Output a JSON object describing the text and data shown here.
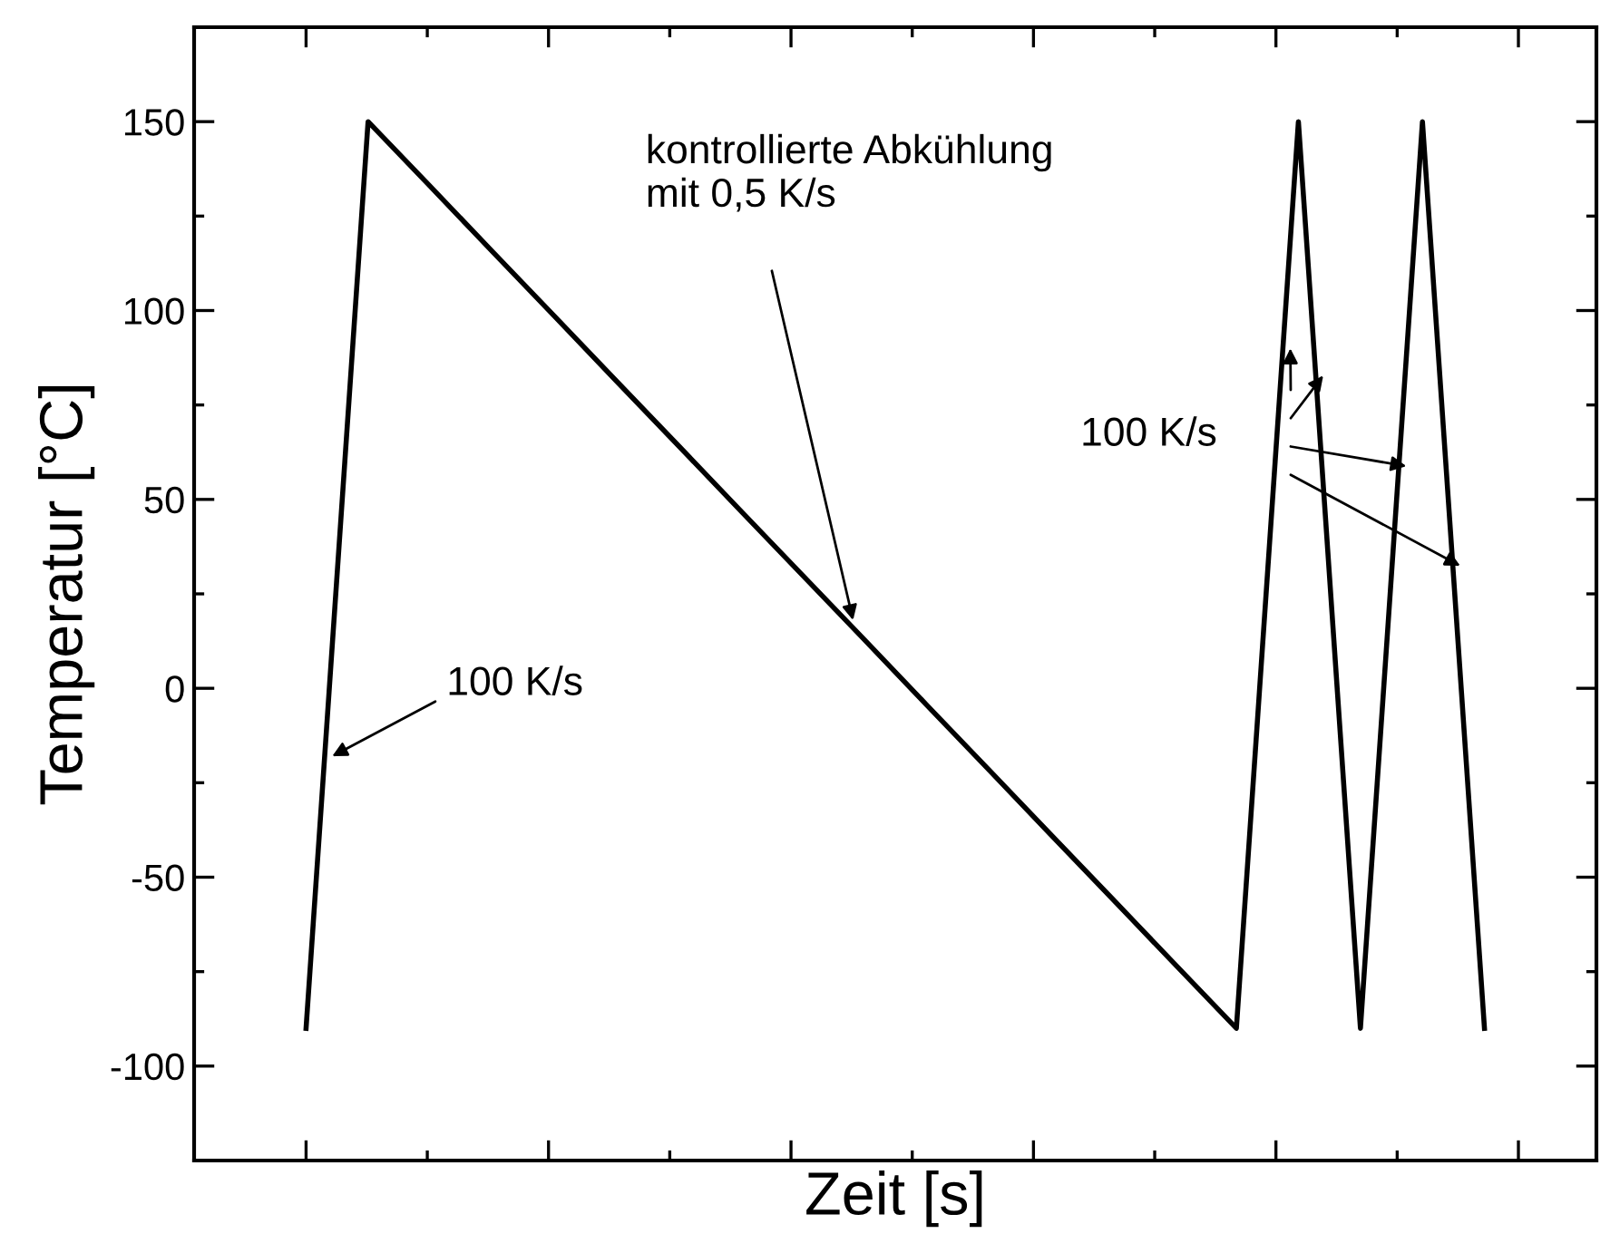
{
  "chart_data": {
    "type": "line",
    "xlabel": "Zeit [s]",
    "ylabel": "Temperatur [°C]",
    "categories": [
      null,
      null,
      null,
      null,
      null,
      null,
      null,
      null,
      null,
      null,
      null,
      null,
      null,
      null,
      null,
      null,
      null,
      null,
      null,
      null
    ],
    "series": [
      {
        "color": "#000000",
        "values": [
          -90,
          150,
          132.9,
          115.7,
          98.6,
          81.4,
          64.3,
          47.1,
          30,
          12.9,
          -4.3,
          -21.4,
          -38.6,
          -55.7,
          -72.9,
          -90,
          150,
          -90,
          150,
          -90
        ]
      }
    ],
    "ylim": [
      -125,
      175
    ],
    "yticks": [
      -100,
      -50,
      0,
      50,
      100,
      150
    ],
    "tick_labels": "y",
    "grid": false,
    "marker": "none",
    "line_style": "solid",
    "annotations": [
      "100 K/s",
      "kontrollierte Abkühlung\nmit 0,5 K/s",
      "100 K/s"
    ]
  }
}
